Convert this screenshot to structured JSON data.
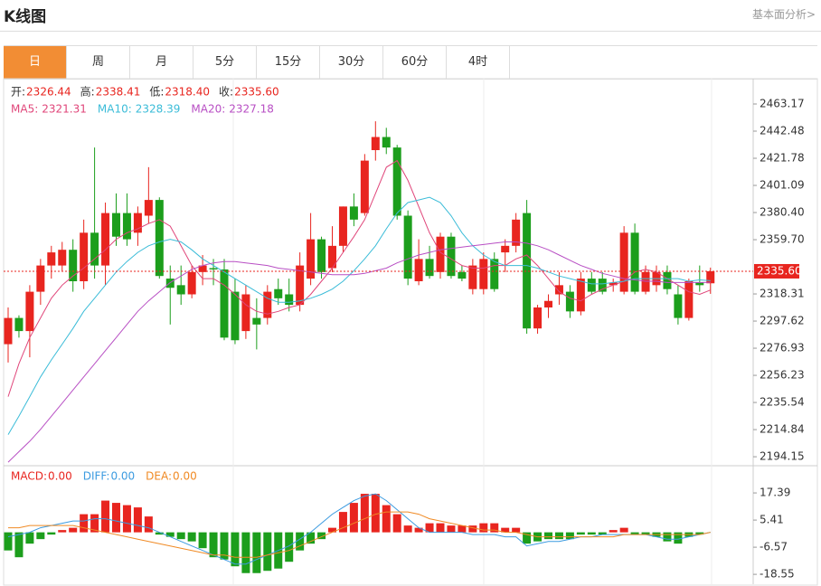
{
  "header": {
    "title": "K线图",
    "link": "基本面分析>"
  },
  "tabs": [
    "日",
    "周",
    "月",
    "5分",
    "15分",
    "30分",
    "60分",
    "4时"
  ],
  "chart_data": [
    {
      "type": "candlestick",
      "ohlc_legend": [
        {
          "label": "开:",
          "value": 2326.44
        },
        {
          "label": "高:",
          "value": 2338.41
        },
        {
          "label": "低:",
          "value": 2318.4,
          "value_label": "2318.40"
        },
        {
          "label": "收:",
          "value": 2335.6,
          "value_label": "2335.60"
        }
      ],
      "up_color": "#e8251f",
      "down_color": "#1c9e1c",
      "open": [
        2280,
        2300,
        2290,
        2320,
        2340,
        2340,
        2352,
        2328,
        2365,
        2340,
        2380,
        2380,
        2365,
        2378,
        2390,
        2330,
        2325,
        2318,
        2335,
        2338,
        2337,
        2320,
        2290,
        2300,
        2300,
        2322,
        2318,
        2310,
        2330,
        2360,
        2338,
        2355,
        2385,
        2380,
        2428,
        2438,
        2430,
        2378,
        2328,
        2345,
        2335,
        2362,
        2335,
        2322,
        2322,
        2345,
        2350,
        2355,
        2380,
        2292,
        2308,
        2318,
        2320,
        2305,
        2330,
        2330,
        2325,
        2320,
        2365,
        2320,
        2325,
        2335,
        2318,
        2300,
        2327,
        2326.44
      ],
      "high": [
        2308,
        2302,
        2325,
        2345,
        2355,
        2358,
        2360,
        2375,
        2430,
        2388,
        2395,
        2395,
        2385,
        2415,
        2392,
        2340,
        2340,
        2340,
        2348,
        2345,
        2345,
        2330,
        2325,
        2315,
        2325,
        2330,
        2330,
        2350,
        2380,
        2362,
        2370,
        2385,
        2395,
        2425,
        2450,
        2445,
        2432,
        2382,
        2360,
        2355,
        2365,
        2365,
        2340,
        2345,
        2350,
        2350,
        2360,
        2380,
        2390,
        2310,
        2318,
        2335,
        2325,
        2335,
        2335,
        2335,
        2330,
        2370,
        2372,
        2340,
        2340,
        2340,
        2325,
        2330,
        2340,
        2338.41
      ],
      "low": [
        2266,
        2285,
        2270,
        2310,
        2330,
        2336,
        2320,
        2322,
        2330,
        2325,
        2355,
        2355,
        2355,
        2372,
        2330,
        2295,
        2310,
        2315,
        2325,
        2325,
        2283,
        2280,
        2284,
        2276,
        2295,
        2310,
        2305,
        2305,
        2325,
        2330,
        2335,
        2350,
        2370,
        2378,
        2420,
        2425,
        2375,
        2325,
        2325,
        2330,
        2330,
        2330,
        2328,
        2318,
        2318,
        2320,
        2335,
        2350,
        2288,
        2288,
        2300,
        2310,
        2300,
        2302,
        2318,
        2318,
        2320,
        2318,
        2318,
        2318,
        2320,
        2318,
        2295,
        2298,
        2320,
        2318.4
      ],
      "close": [
        2300,
        2290,
        2320,
        2340,
        2350,
        2352,
        2328,
        2365,
        2340,
        2380,
        2362,
        2360,
        2380,
        2390,
        2332,
        2323,
        2318,
        2335,
        2340,
        2337,
        2285,
        2283,
        2318,
        2295,
        2320,
        2315,
        2310,
        2340,
        2360,
        2335,
        2355,
        2385,
        2375,
        2420,
        2438,
        2430,
        2378,
        2330,
        2345,
        2332,
        2362,
        2332,
        2330,
        2340,
        2345,
        2322,
        2355,
        2375,
        2292,
        2308,
        2313,
        2325,
        2305,
        2330,
        2320,
        2320,
        2327,
        2365,
        2320,
        2335,
        2335,
        2322,
        2300,
        2328,
        2325,
        2335.6
      ],
      "ma": [
        {
          "name": "MA5:",
          "color": "#e0467a",
          "value": 2321.31,
          "values": [
            2240,
            2265,
            2285,
            2300,
            2315,
            2325,
            2332,
            2338,
            2345,
            2352,
            2360,
            2365,
            2368,
            2372,
            2375,
            2370,
            2355,
            2340,
            2330,
            2330,
            2325,
            2318,
            2310,
            2305,
            2303,
            2305,
            2308,
            2310,
            2318,
            2328,
            2338,
            2350,
            2362,
            2375,
            2395,
            2415,
            2420,
            2405,
            2385,
            2365,
            2350,
            2345,
            2340,
            2338,
            2338,
            2340,
            2340,
            2345,
            2348,
            2340,
            2330,
            2320,
            2315,
            2313,
            2318,
            2322,
            2325,
            2328,
            2335,
            2337,
            2335,
            2330,
            2325,
            2320,
            2318,
            2321.31
          ]
        },
        {
          "name": "MA10:",
          "color": "#3bbcd8",
          "value": 2328.39,
          "values": [
            2211,
            2225,
            2240,
            2255,
            2268,
            2280,
            2292,
            2305,
            2315,
            2325,
            2335,
            2343,
            2350,
            2355,
            2358,
            2360,
            2358,
            2352,
            2345,
            2340,
            2335,
            2330,
            2325,
            2320,
            2315,
            2312,
            2312,
            2313,
            2315,
            2318,
            2322,
            2328,
            2336,
            2345,
            2355,
            2368,
            2380,
            2388,
            2390,
            2392,
            2388,
            2378,
            2365,
            2355,
            2348,
            2343,
            2340,
            2340,
            2340,
            2338,
            2335,
            2332,
            2330,
            2328,
            2326,
            2326,
            2327,
            2328,
            2330,
            2330,
            2330,
            2330,
            2330,
            2328,
            2329,
            2328.39
          ]
        },
        {
          "name": "MA20:",
          "color": "#b84fc4",
          "value": 2327.18,
          "values": [
            2190,
            2198,
            2206,
            2215,
            2225,
            2235,
            2245,
            2255,
            2265,
            2275,
            2285,
            2295,
            2305,
            2313,
            2320,
            2327,
            2332,
            2337,
            2340,
            2342,
            2343,
            2343,
            2342,
            2341,
            2340,
            2338,
            2337,
            2336,
            2335,
            2334,
            2333,
            2333,
            2333,
            2334,
            2336,
            2338,
            2342,
            2345,
            2348,
            2350,
            2352,
            2353,
            2354,
            2355,
            2356,
            2357,
            2358,
            2358,
            2357,
            2355,
            2352,
            2348,
            2344,
            2340,
            2337,
            2334,
            2332,
            2330,
            2329,
            2328,
            2328,
            2327,
            2327,
            2327,
            2327,
            2327.18
          ]
        }
      ],
      "last_price": {
        "value": 2335.6,
        "label": "2335.60"
      },
      "ylim": [
        2187.3,
        2481.8
      ],
      "yticks": [
        2463.17,
        2442.48,
        2421.78,
        2401.09,
        {
          "value": 2380.4,
          "label": "2380.40"
        },
        {
          "value": 2359.7,
          "label": "2359.70"
        },
        2318.31,
        2297.62,
        2276.93,
        2256.23,
        2235.54,
        2214.84,
        2194.15
      ]
    },
    {
      "type": "macd",
      "legend": [
        {
          "name": "MACD:",
          "value": 0,
          "value_label": "0.00",
          "color": "#e8251f"
        },
        {
          "name": "DIFF:",
          "value": 0,
          "value_label": "0.00",
          "color": "#3c9be0"
        },
        {
          "name": "DEA:",
          "value": 0,
          "value_label": "0.00",
          "color": "#f08a24"
        }
      ],
      "histogram": [
        -8,
        -11,
        -5,
        -3,
        -1,
        1,
        2,
        8,
        8,
        14,
        13,
        12,
        11,
        7,
        -1,
        -2,
        -3,
        -4,
        -7,
        -11,
        -12,
        -15,
        -18,
        -18,
        -17,
        -16,
        -13,
        -8,
        -5,
        -3,
        2,
        9,
        13,
        17,
        17,
        12,
        8,
        3,
        2,
        4,
        4,
        3,
        3,
        3,
        4,
        4,
        2,
        2,
        -5,
        -4,
        -3,
        -3,
        -3,
        -1,
        -1,
        -1,
        1,
        2,
        -1,
        -1,
        -2,
        -4,
        -5,
        -2,
        -1,
        0
      ],
      "diff": [
        -2,
        -1,
        0,
        2,
        3,
        4,
        5,
        5,
        6,
        6,
        5,
        4,
        3,
        2,
        0,
        -2,
        -4,
        -6,
        -8,
        -10,
        -12,
        -14,
        -14,
        -12,
        -10,
        -8,
        -6,
        -3,
        0,
        4,
        8,
        11,
        14,
        16,
        17,
        14,
        10,
        6,
        2,
        0,
        0,
        0,
        0,
        -1,
        -1,
        -1,
        -2,
        -2,
        -6,
        -5,
        -4,
        -4,
        -3,
        -2,
        -2,
        -1,
        -1,
        -1,
        -1,
        -1,
        -2,
        -3,
        -3,
        -2,
        -1,
        0
      ],
      "dea": [
        2,
        2,
        3,
        3,
        3,
        3,
        3,
        2,
        1,
        0,
        -1,
        -2,
        -3,
        -4,
        -5,
        -6,
        -7,
        -8,
        -9,
        -10,
        -10,
        -11,
        -11,
        -11,
        -10,
        -9,
        -8,
        -6,
        -4,
        -2,
        0,
        2,
        4,
        6,
        8,
        9,
        9,
        9,
        8,
        6,
        5,
        4,
        3,
        2,
        1,
        1,
        0,
        0,
        -1,
        -2,
        -2,
        -2,
        -2,
        -2,
        -2,
        -2,
        -2,
        -1,
        -1,
        -1,
        -1,
        -1,
        -1,
        -1,
        -1,
        0
      ],
      "ylim": [
        -22.5,
        28.6
      ],
      "yticks": [
        17.39,
        5.41,
        -6.57,
        -18.55
      ]
    }
  ]
}
